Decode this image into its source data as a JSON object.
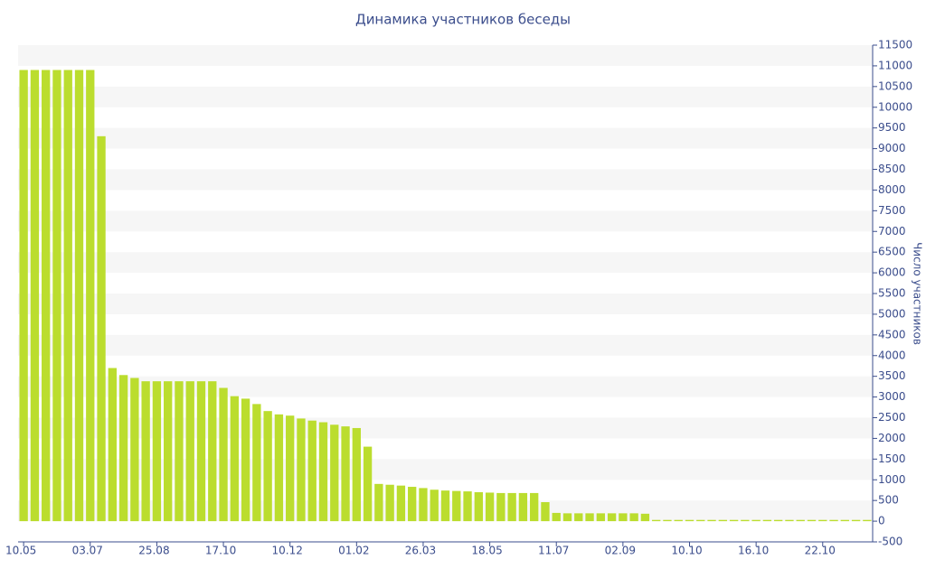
{
  "chart_data": {
    "type": "bar",
    "title": "Динамика участников беседы",
    "y_label": "Число участников",
    "categories": [
      "10.05",
      null,
      null,
      null,
      null,
      null,
      "03.07",
      null,
      null,
      null,
      null,
      null,
      "25.08",
      null,
      null,
      null,
      null,
      null,
      "17.10",
      null,
      null,
      null,
      null,
      null,
      "10.12",
      null,
      null,
      null,
      null,
      null,
      "01.02",
      null,
      null,
      null,
      null,
      null,
      "26.03",
      null,
      null,
      null,
      null,
      null,
      "18.05",
      null,
      null,
      null,
      null,
      null,
      "11.07",
      null,
      null,
      null,
      null,
      null,
      "02.09",
      null,
      null,
      null,
      null,
      null,
      "10.10",
      null,
      null,
      null,
      null,
      null,
      "16.10",
      null,
      null,
      null,
      null,
      null,
      "22.10",
      null,
      null,
      null,
      null
    ],
    "values": [
      10900,
      10900,
      10900,
      10900,
      10900,
      10900,
      10900,
      9300,
      3700,
      3530,
      3460,
      3380,
      3380,
      3380,
      3380,
      3380,
      3380,
      3380,
      3220,
      3020,
      2960,
      2830,
      2660,
      2580,
      2550,
      2480,
      2430,
      2390,
      2330,
      2290,
      2250,
      1800,
      900,
      880,
      860,
      830,
      800,
      760,
      740,
      730,
      720,
      700,
      690,
      680,
      680,
      680,
      680,
      460,
      200,
      190,
      190,
      190,
      190,
      190,
      190,
      190,
      180,
      30,
      30,
      30,
      30,
      30,
      30,
      30,
      30,
      30,
      30,
      30,
      30,
      30,
      30,
      30,
      30,
      30,
      30,
      30,
      30
    ],
    "color": "#bbdd2e",
    "ylim": [
      -500,
      11500
    ],
    "yticks": [
      -500,
      0,
      500,
      1000,
      1500,
      2000,
      2500,
      3000,
      3500,
      4000,
      4500,
      5000,
      5500,
      6000,
      6500,
      7000,
      7500,
      8000,
      8500,
      9000,
      9500,
      10000,
      10500,
      11000,
      11500
    ],
    "grid": true
  }
}
